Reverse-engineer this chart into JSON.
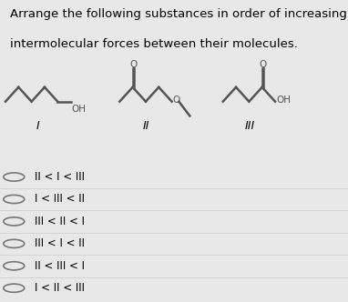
{
  "title_line1": "Arrange the following substances in order of increasing total",
  "title_line2": "intermolecular forces between their molecules.",
  "title_fontsize": 9.5,
  "bg_color": "#e8e8e8",
  "options": [
    "II < I < III",
    "I < III < II",
    "III < II < I",
    "III < I < II",
    "II < III < I",
    "I < II < III"
  ]
}
